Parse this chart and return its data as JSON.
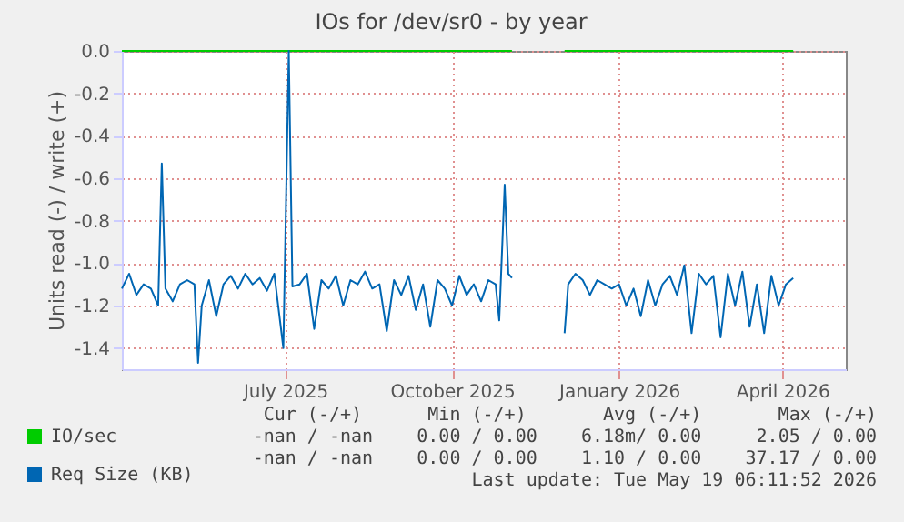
{
  "chart_data": {
    "type": "line",
    "title": "IOs for /dev/sr0 - by year",
    "ylabel": "Units read (-) / write (+)",
    "x": [
      "2025-04-02",
      "2025-04-06",
      "2025-04-10",
      "2025-04-14",
      "2025-04-18",
      "2025-04-22",
      "2025-04-24",
      "2025-04-26",
      "2025-04-30",
      "2025-05-04",
      "2025-05-08",
      "2025-05-12",
      "2025-05-14",
      "2025-05-16",
      "2025-05-20",
      "2025-05-24",
      "2025-05-28",
      "2025-06-01",
      "2025-06-05",
      "2025-06-09",
      "2025-06-13",
      "2025-06-17",
      "2025-06-21",
      "2025-06-25",
      "2025-06-30",
      "2025-07-03",
      "2025-07-05",
      "2025-07-09",
      "2025-07-13",
      "2025-07-17",
      "2025-07-21",
      "2025-07-25",
      "2025-07-29",
      "2025-08-02",
      "2025-08-06",
      "2025-08-10",
      "2025-08-14",
      "2025-08-18",
      "2025-08-22",
      "2025-08-26",
      "2025-08-30",
      "2025-09-03",
      "2025-09-07",
      "2025-09-11",
      "2025-09-15",
      "2025-09-19",
      "2025-09-23",
      "2025-09-27",
      "2025-10-01",
      "2025-10-05",
      "2025-10-09",
      "2025-10-13",
      "2025-10-17",
      "2025-10-21",
      "2025-10-25",
      "2025-10-27",
      "2025-10-30",
      "2025-11-01",
      "2025-11-03",
      "2025-11-18",
      "2025-12-02",
      "2025-12-04",
      "2025-12-08",
      "2025-12-12",
      "2025-12-16",
      "2025-12-20",
      "2025-12-24",
      "2025-12-28",
      "2026-01-01",
      "2026-01-05",
      "2026-01-09",
      "2026-01-13",
      "2026-01-17",
      "2026-01-21",
      "2026-01-25",
      "2026-01-29",
      "2026-02-02",
      "2026-02-06",
      "2026-02-10",
      "2026-02-14",
      "2026-02-18",
      "2026-02-22",
      "2026-02-26",
      "2026-03-02",
      "2026-03-06",
      "2026-03-10",
      "2026-03-14",
      "2026-03-18",
      "2026-03-22",
      "2026-03-26",
      "2026-03-30",
      "2026-04-03",
      "2026-04-07"
    ],
    "series": [
      {
        "name": "IO/sec",
        "color": "#00cc00",
        "values": [
          0,
          0,
          0,
          0,
          0,
          0,
          0,
          0,
          0,
          0,
          0,
          0,
          0,
          0,
          0,
          0,
          0,
          0,
          0,
          0,
          0,
          0,
          0,
          0,
          0,
          0,
          0,
          0,
          0,
          0,
          0,
          0,
          0,
          0,
          0,
          0,
          0,
          0,
          0,
          0,
          0,
          0,
          0,
          0,
          0,
          0,
          0,
          0,
          0,
          0,
          0,
          0,
          0,
          0,
          0,
          0,
          0,
          0,
          0,
          null,
          0,
          0,
          0,
          0,
          0,
          0,
          0,
          0,
          0,
          0,
          0,
          0,
          0,
          0,
          0,
          0,
          0,
          0,
          0,
          0,
          0,
          0,
          0,
          0,
          0,
          0,
          0,
          0,
          0,
          0,
          0,
          0,
          0
        ]
      },
      {
        "name": "Req Size (KB)",
        "color": "#0066b3",
        "values": [
          -1.12,
          -1.05,
          -1.15,
          -1.1,
          -1.12,
          -1.2,
          -0.53,
          -1.12,
          -1.18,
          -1.1,
          -1.08,
          -1.1,
          -1.47,
          -1.2,
          -1.08,
          -1.25,
          -1.1,
          -1.06,
          -1.12,
          -1.05,
          -1.1,
          -1.07,
          -1.13,
          -1.05,
          -1.4,
          0.0,
          -1.11,
          -1.1,
          -1.05,
          -1.31,
          -1.08,
          -1.12,
          -1.06,
          -1.2,
          -1.08,
          -1.1,
          -1.04,
          -1.12,
          -1.1,
          -1.32,
          -1.08,
          -1.15,
          -1.06,
          -1.22,
          -1.1,
          -1.3,
          -1.08,
          -1.12,
          -1.2,
          -1.06,
          -1.15,
          -1.1,
          -1.18,
          -1.08,
          -1.1,
          -1.27,
          -0.63,
          -1.05,
          -1.07,
          null,
          -1.33,
          -1.1,
          -1.05,
          -1.08,
          -1.15,
          -1.08,
          -1.1,
          -1.12,
          -1.1,
          -1.2,
          -1.12,
          -1.25,
          -1.08,
          -1.2,
          -1.1,
          -1.06,
          -1.15,
          -1.01,
          -1.33,
          -1.05,
          -1.1,
          -1.06,
          -1.35,
          -1.05,
          -1.2,
          -1.04,
          -1.3,
          -1.1,
          -1.33,
          -1.06,
          -1.2,
          -1.1,
          -1.07
        ]
      }
    ],
    "xlim": [
      "2025-04-02",
      "2026-05-06"
    ],
    "xticks": [
      {
        "value": "2025-07-01",
        "label": "July 2025"
      },
      {
        "value": "2025-10-01",
        "label": "October 2025"
      },
      {
        "value": "2026-01-01",
        "label": "January 2026"
      },
      {
        "value": "2026-04-01",
        "label": "April 2026"
      }
    ],
    "ylim": [
      -1.5,
      0.0
    ],
    "yticks": [
      {
        "value": 0.0,
        "label": "0.0"
      },
      {
        "value": -0.2,
        "label": "-0.2"
      },
      {
        "value": -0.4,
        "label": "-0.4"
      },
      {
        "value": -0.6,
        "label": "-0.6"
      },
      {
        "value": -0.8,
        "label": "-0.8"
      },
      {
        "value": -1.0,
        "label": "-1.0"
      },
      {
        "value": -1.2,
        "label": "-1.2"
      },
      {
        "value": -1.4,
        "label": "-1.4"
      }
    ],
    "grid": true,
    "legend": "bottom left",
    "marker": "none",
    "line_style": "solid",
    "annotations": [
      "Cur (-/+)      Min (-/+)       Avg (-/+)       Max (-/+)",
      "-nan / -nan    0.00 / 0.00    6.18m/ 0.00     2.05 / 0.00",
      "-nan / -nan    0.00 / 0.00    1.10 / 0.00    37.17 / 0.00",
      "Last update: Tue May 19 06:11:52 2026"
    ]
  }
}
